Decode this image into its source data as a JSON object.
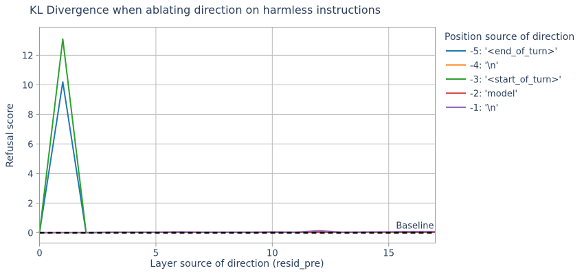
{
  "chart_data": {
    "type": "line",
    "title": "KL Divergence when ablating direction on harmless instructions",
    "xlabel": "Layer source of direction (resid_pre)",
    "ylabel": "Refusal score",
    "xlim": [
      0,
      17
    ],
    "ylim": [
      -0.7,
      13.9
    ],
    "x_ticks": [
      0,
      5,
      10,
      15
    ],
    "y_ticks": [
      0,
      2,
      4,
      6,
      8,
      10,
      12
    ],
    "grid": true,
    "legend_title": "Position source of direction",
    "legend_position": "right",
    "x": [
      0,
      1,
      2,
      3,
      4,
      5,
      6,
      7,
      8,
      9,
      10,
      11,
      12,
      13,
      14,
      15,
      16,
      17
    ],
    "series": [
      {
        "name": "-5: '<end_of_turn>'",
        "color": "#1f77b4",
        "values": [
          0,
          10.2,
          0,
          0.02,
          0.02,
          0.02,
          0.03,
          0.02,
          0.02,
          0.02,
          0.03,
          0.02,
          0.05,
          0.02,
          0.03,
          0.03,
          0.03,
          0.03
        ]
      },
      {
        "name": "-4: '\\n'",
        "color": "#ff7f0e",
        "values": [
          0,
          0.01,
          0.01,
          0.02,
          0.02,
          0.02,
          0.03,
          0.02,
          0.02,
          0.02,
          0.03,
          0.02,
          0.04,
          0.02,
          0.03,
          0.03,
          0.03,
          0.03
        ]
      },
      {
        "name": "-3: '<start_of_turn>'",
        "color": "#2ca02c",
        "values": [
          0,
          13.1,
          0,
          0.03,
          0.03,
          0.03,
          0.04,
          0.03,
          0.03,
          0.03,
          0.04,
          0.03,
          0.06,
          0.03,
          0.04,
          0.04,
          0.04,
          0.04
        ]
      },
      {
        "name": "-2: 'model'",
        "color": "#d62728",
        "values": [
          0,
          0.01,
          0.01,
          0.02,
          0.02,
          0.02,
          0.03,
          0.02,
          0.02,
          0.02,
          0.03,
          0.02,
          0.05,
          0.02,
          0.03,
          0.04,
          0.04,
          0.04
        ]
      },
      {
        "name": "-1: '\\n'",
        "color": "#9467bd",
        "values": [
          0,
          0.02,
          0.02,
          0.03,
          0.03,
          0.03,
          0.06,
          0.03,
          0.03,
          0.03,
          0.06,
          0.03,
          0.13,
          0.03,
          0.05,
          0.06,
          0.07,
          0.07
        ]
      }
    ],
    "baseline": {
      "label": "Baseline",
      "value": 0,
      "color": "#000000",
      "style": "dashed"
    },
    "colors": {
      "plot_border": "#999999",
      "grid": "#bbbbbb",
      "text": "#2a3f5f"
    }
  }
}
